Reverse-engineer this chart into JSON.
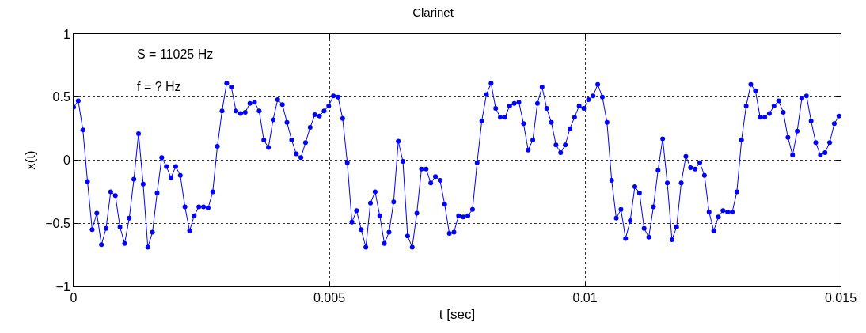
{
  "chart_data": {
    "type": "line",
    "title": "Clarinet",
    "xlabel": "t [sec]",
    "ylabel": "x(t)",
    "annotations": [
      "S = 11025 Hz",
      "f = ? Hz"
    ],
    "x": [
      0,
      9.07e-05,
      0.0001814,
      0.0002721,
      0.0003628,
      0.0004535,
      0.0005442,
      0.0006349,
      0.0007256,
      0.0008163,
      0.000907,
      0.0009977,
      0.0010884,
      0.0011791,
      0.0012698,
      0.0013605,
      0.0014512,
      0.001542,
      0.0016327,
      0.0017234,
      0.0018141,
      0.0019048,
      0.0019955,
      0.0020862,
      0.0021769,
      0.0022676,
      0.0023583,
      0.002449,
      0.0025397,
      0.0026304,
      0.0027211,
      0.0028118,
      0.0029025,
      0.0029932,
      0.0030839,
      0.0031746,
      0.0032653,
      0.003356,
      0.0034467,
      0.0035374,
      0.0036281,
      0.0037188,
      0.0038095,
      0.0039002,
      0.0039909,
      0.0040816,
      0.0041723,
      0.004263,
      0.0043537,
      0.0044444,
      0.0045351,
      0.0046259,
      0.0047166,
      0.0048073,
      0.004898,
      0.0049887,
      0.0050794,
      0.0051701,
      0.0052608,
      0.0053515,
      0.0054422,
      0.0055329,
      0.0056236,
      0.0057143,
      0.005805,
      0.0058957,
      0.0059864,
      0.0060771,
      0.0061678,
      0.0062585,
      0.0063492,
      0.0064399,
      0.0065306,
      0.0066213,
      0.006712,
      0.0068027,
      0.0068934,
      0.0069841,
      0.0070748,
      0.0071655,
      0.0072562,
      0.0073469,
      0.0074376,
      0.0075283,
      0.007619,
      0.0077098,
      0.0078005,
      0.0078912,
      0.0079819,
      0.0080726,
      0.0081633,
      0.008254,
      0.0083447,
      0.0084354,
      0.0085261,
      0.0086168,
      0.0087075,
      0.0087982,
      0.0088889,
      0.0089796,
      0.0090703,
      0.009161,
      0.0092517,
      0.0093424,
      0.0094331,
      0.0095238,
      0.0096145,
      0.0097052,
      0.0097959,
      0.0098866,
      0.0099773,
      0.010068,
      0.0101587,
      0.0102494,
      0.0103401,
      0.0104308,
      0.0105215,
      0.0106122,
      0.0107029,
      0.0107937,
      0.0108844,
      0.0109751,
      0.0110658,
      0.0111565,
      0.0112472,
      0.0113379,
      0.0114286,
      0.0115193,
      0.01161,
      0.0117007,
      0.0117914,
      0.0118821,
      0.0119728,
      0.0120635,
      0.0121542,
      0.0122449,
      0.0123356,
      0.0124263,
      0.012517,
      0.0126077,
      0.0126984,
      0.0127891,
      0.0128798,
      0.0129705,
      0.0130612,
      0.0131519,
      0.0132426,
      0.0133333,
      0.013424,
      0.0135147,
      0.0136054,
      0.0136961,
      0.0137868,
      0.0138776,
      0.0139683,
      0.014059,
      0.0141497,
      0.0142404,
      0.0143311,
      0.0144218,
      0.0145125,
      0.0146032,
      0.0146939,
      0.0147846,
      0.0148753,
      0.014966
    ],
    "series": [
      {
        "color": "#0000ff",
        "values": [
          0.42,
          0.47,
          0.24,
          -0.17,
          -0.55,
          -0.42,
          -0.67,
          -0.54,
          -0.25,
          -0.28,
          -0.53,
          -0.66,
          -0.46,
          -0.15,
          0.21,
          -0.19,
          -0.69,
          -0.57,
          -0.26,
          0.02,
          -0.05,
          -0.14,
          -0.05,
          -0.12,
          -0.37,
          -0.56,
          -0.44,
          -0.37,
          -0.37,
          -0.38,
          -0.25,
          0.11,
          0.39,
          0.61,
          0.58,
          0.39,
          0.37,
          0.38,
          0.45,
          0.46,
          0.39,
          0.16,
          0.1,
          0.32,
          0.48,
          0.44,
          0.3,
          0.16,
          0.05,
          0.02,
          0.14,
          0.26,
          0.36,
          0.35,
          0.39,
          0.43,
          0.51,
          0.5,
          0.33,
          -0.02,
          -0.49,
          -0.4,
          -0.55,
          -0.69,
          -0.34,
          -0.25,
          -0.44,
          -0.66,
          -0.57,
          -0.33,
          0.15,
          -0.01,
          -0.6,
          -0.69,
          -0.42,
          -0.07,
          -0.07,
          -0.18,
          -0.13,
          -0.16,
          -0.35,
          -0.58,
          -0.57,
          -0.44,
          -0.45,
          -0.44,
          -0.39,
          -0.02,
          0.31,
          0.52,
          0.61,
          0.41,
          0.34,
          0.34,
          0.43,
          0.45,
          0.46,
          0.29,
          0.08,
          0.16,
          0.45,
          0.58,
          0.41,
          0.3,
          0.12,
          0.06,
          0.12,
          0.25,
          0.34,
          0.43,
          0.41,
          0.48,
          0.51,
          0.6,
          0.5,
          0.3,
          -0.16,
          -0.46,
          -0.39,
          -0.62,
          -0.48,
          -0.21,
          -0.26,
          -0.54,
          -0.61,
          -0.37,
          -0.08,
          0.17,
          -0.18,
          -0.63,
          -0.53,
          -0.18,
          0.03,
          -0.06,
          -0.07,
          -0.02,
          -0.12,
          -0.41,
          -0.56,
          -0.45,
          -0.4,
          -0.41,
          -0.41,
          -0.25,
          0.16,
          0.43,
          0.6,
          0.55,
          0.34,
          0.34,
          0.37,
          0.43,
          0.47,
          0.38,
          0.18,
          0.04,
          0.23,
          0.49,
          0.51,
          0.31,
          0.14,
          0.04,
          0.06,
          0.14,
          0.29,
          0.35
        ]
      }
    ],
    "xlim": [
      0,
      0.015
    ],
    "xticks": [
      0,
      0.005,
      0.01,
      0.015
    ],
    "ylim": [
      -1,
      1
    ],
    "yticks": [
      -1,
      -0.5,
      0,
      0.5,
      1
    ],
    "grid": true,
    "marker": "circle",
    "line_style": "solid"
  }
}
